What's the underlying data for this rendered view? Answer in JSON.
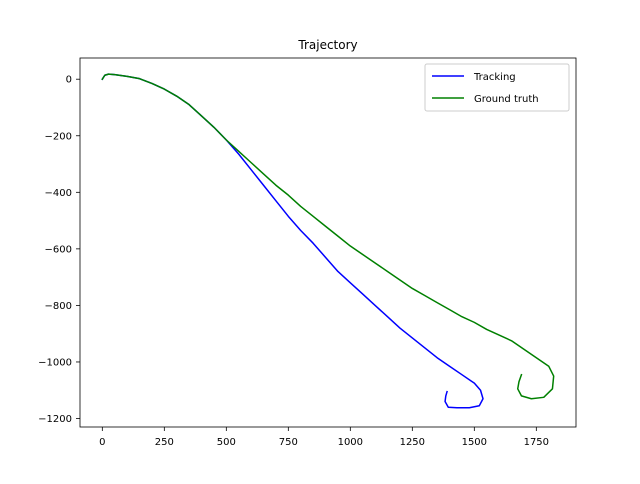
{
  "chart_data": {
    "type": "line",
    "title": "Trajectory",
    "xlabel": "",
    "ylabel": "",
    "xlim": [
      -90,
      1910
    ],
    "ylim": [
      -1230,
      75
    ],
    "xticks": [
      0,
      250,
      500,
      750,
      1000,
      1250,
      1500,
      1750
    ],
    "xtick_labels": [
      "0",
      "250",
      "500",
      "750",
      "1000",
      "1250",
      "1500",
      "1750"
    ],
    "yticks": [
      0,
      -200,
      -400,
      -600,
      -800,
      -1000,
      -1200
    ],
    "ytick_labels": [
      "0",
      "−200",
      "−400",
      "−600",
      "−800",
      "−1000",
      "−1200"
    ],
    "grid": false,
    "legend_position": "upper right",
    "series": [
      {
        "name": "Tracking",
        "color": "#0000ff",
        "points": [
          [
            0,
            0
          ],
          [
            10,
            14
          ],
          [
            25,
            18
          ],
          [
            50,
            16
          ],
          [
            100,
            10
          ],
          [
            150,
            2
          ],
          [
            200,
            -15
          ],
          [
            250,
            -35
          ],
          [
            300,
            -60
          ],
          [
            350,
            -90
          ],
          [
            400,
            -130
          ],
          [
            450,
            -170
          ],
          [
            500,
            -215
          ],
          [
            550,
            -265
          ],
          [
            600,
            -320
          ],
          [
            650,
            -375
          ],
          [
            700,
            -430
          ],
          [
            750,
            -485
          ],
          [
            800,
            -535
          ],
          [
            850,
            -580
          ],
          [
            900,
            -630
          ],
          [
            950,
            -680
          ],
          [
            1000,
            -720
          ],
          [
            1050,
            -760
          ],
          [
            1100,
            -800
          ],
          [
            1150,
            -840
          ],
          [
            1200,
            -880
          ],
          [
            1250,
            -915
          ],
          [
            1300,
            -950
          ],
          [
            1350,
            -985
          ],
          [
            1400,
            -1015
          ],
          [
            1450,
            -1045
          ],
          [
            1500,
            -1075
          ],
          [
            1525,
            -1100
          ],
          [
            1535,
            -1130
          ],
          [
            1520,
            -1155
          ],
          [
            1480,
            -1162
          ],
          [
            1430,
            -1162
          ],
          [
            1395,
            -1160
          ],
          [
            1382,
            -1140
          ],
          [
            1385,
            -1120
          ],
          [
            1390,
            -1105
          ]
        ]
      },
      {
        "name": "Ground truth",
        "color": "#008000",
        "points": [
          [
            0,
            0
          ],
          [
            10,
            14
          ],
          [
            25,
            18
          ],
          [
            50,
            16
          ],
          [
            100,
            10
          ],
          [
            150,
            2
          ],
          [
            200,
            -15
          ],
          [
            250,
            -35
          ],
          [
            300,
            -60
          ],
          [
            350,
            -90
          ],
          [
            400,
            -130
          ],
          [
            450,
            -170
          ],
          [
            500,
            -215
          ],
          [
            550,
            -255
          ],
          [
            600,
            -295
          ],
          [
            650,
            -335
          ],
          [
            700,
            -375
          ],
          [
            750,
            -410
          ],
          [
            800,
            -450
          ],
          [
            850,
            -485
          ],
          [
            900,
            -520
          ],
          [
            950,
            -555
          ],
          [
            1000,
            -590
          ],
          [
            1050,
            -620
          ],
          [
            1100,
            -650
          ],
          [
            1150,
            -680
          ],
          [
            1200,
            -710
          ],
          [
            1250,
            -740
          ],
          [
            1300,
            -765
          ],
          [
            1350,
            -790
          ],
          [
            1400,
            -815
          ],
          [
            1450,
            -840
          ],
          [
            1500,
            -860
          ],
          [
            1550,
            -885
          ],
          [
            1600,
            -905
          ],
          [
            1650,
            -925
          ],
          [
            1700,
            -955
          ],
          [
            1750,
            -985
          ],
          [
            1800,
            -1015
          ],
          [
            1820,
            -1050
          ],
          [
            1815,
            -1095
          ],
          [
            1780,
            -1125
          ],
          [
            1730,
            -1130
          ],
          [
            1690,
            -1120
          ],
          [
            1675,
            -1095
          ],
          [
            1680,
            -1070
          ],
          [
            1690,
            -1045
          ]
        ]
      }
    ]
  }
}
